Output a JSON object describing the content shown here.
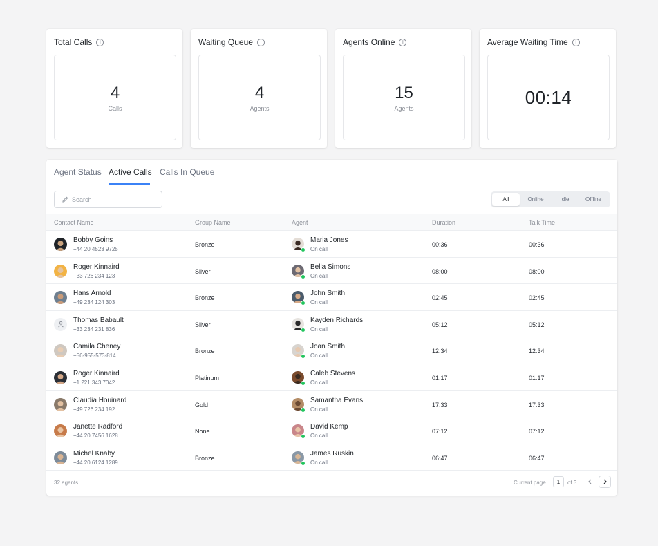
{
  "stats": [
    {
      "title": "Total Calls",
      "value": "4",
      "unit": "Calls"
    },
    {
      "title": "Waiting Queue",
      "value": "4",
      "unit": "Agents"
    },
    {
      "title": "Agents Online",
      "value": "15",
      "unit": "Agents"
    },
    {
      "title": "Average Waiting Time",
      "value": "00:14",
      "unit": ""
    }
  ],
  "tabs": [
    "Agent Status",
    "Active Calls",
    "Calls In Queue"
  ],
  "active_tab": "Active Calls",
  "search": {
    "placeholder": "Search",
    "value": ""
  },
  "filters": [
    "All",
    "Online",
    "Idle",
    "Offline"
  ],
  "active_filter": "All",
  "columns": [
    "Contact Name",
    "Group Name",
    "Agent",
    "Duration",
    "Talk Time"
  ],
  "rows": [
    {
      "contact": "Bobby Goins",
      "phone": "+44 20 4523 9725",
      "group": "Bronze",
      "agent": "Maria Jones",
      "agent_status": "On call",
      "duration": "00:36",
      "talk_time": "00:36"
    },
    {
      "contact": "Roger Kinnaird",
      "phone": "+33 726 234 123",
      "group": "Silver",
      "agent": "Bella Simons",
      "agent_status": "On call",
      "duration": "08:00",
      "talk_time": "08:00"
    },
    {
      "contact": "Hans Arnold",
      "phone": "+49 234 124 303",
      "group": "Bronze",
      "agent": "John Smith",
      "agent_status": "On call",
      "duration": "02:45",
      "talk_time": "02:45"
    },
    {
      "contact": "Thomas Babault",
      "phone": "+33 234 231 836",
      "group": "Silver",
      "agent": "Kayden Richards",
      "agent_status": "On call",
      "duration": "05:12",
      "talk_time": "05:12"
    },
    {
      "contact": "Camila Cheney",
      "phone": "+56-955-573-814",
      "group": "Bronze",
      "agent": "Joan Smith",
      "agent_status": "On call",
      "duration": "12:34",
      "talk_time": "12:34"
    },
    {
      "contact": "Roger Kinnaird",
      "phone": "+1 221 343 7042",
      "group": "Platinum",
      "agent": "Caleb Stevens",
      "agent_status": "On call",
      "duration": "01:17",
      "talk_time": "01:17"
    },
    {
      "contact": "Claudia Houinard",
      "phone": "+49 726 234 192",
      "group": "Gold",
      "agent": "Samantha Evans",
      "agent_status": "On call",
      "duration": "17:33",
      "talk_time": "17:33"
    },
    {
      "contact": "Janette Radford",
      "phone": "+44 20 7456 1628",
      "group": "None",
      "agent": "David Kemp",
      "agent_status": "On call",
      "duration": "07:12",
      "talk_time": "07:12"
    },
    {
      "contact": "Michel Knaby",
      "phone": "+44 20 6124 1289",
      "group": "Bronze",
      "agent": "James Ruskin",
      "agent_status": "On call",
      "duration": "06:47",
      "talk_time": "06:47"
    }
  ],
  "footer": {
    "count": "32 agents",
    "current_page_label": "Current page",
    "page": "1",
    "of_pages": "of 3"
  },
  "colors": {
    "accent": "#3b82f6",
    "online": "#22c55e",
    "background": "#f4f4f5"
  }
}
